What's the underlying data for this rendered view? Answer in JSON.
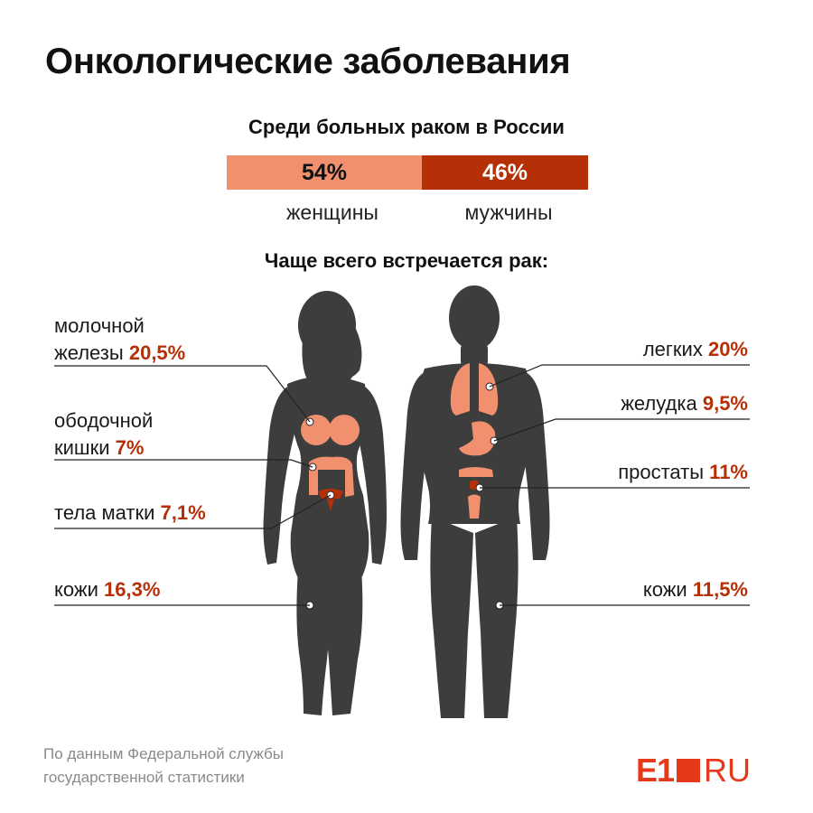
{
  "title": "Онкологические заболевания",
  "subtitle": "Среди больных раком в России",
  "gender_split": {
    "women": {
      "value": "54%",
      "label": "женщины",
      "share": 54,
      "color": "#f1906f"
    },
    "men": {
      "value": "46%",
      "label": "мужчины",
      "share": 46,
      "color": "#b52f07"
    }
  },
  "section_title": "Чаще всего встречается рак:",
  "women_cancers": [
    {
      "name_line1": "молочной",
      "name_line2": "железы",
      "value": "20,5%"
    },
    {
      "name_line1": "ободочной",
      "name_line2": "кишки",
      "value": "7%"
    },
    {
      "name_line1": "",
      "name_line2": "тела матки",
      "value": "7,1%"
    },
    {
      "name_line1": "",
      "name_line2": "кожи",
      "value": "16,3%"
    }
  ],
  "men_cancers": [
    {
      "name": "легких",
      "value": "20%"
    },
    {
      "name": "желудка",
      "value": "9,5%"
    },
    {
      "name": "простаты",
      "value": "11%"
    },
    {
      "name": "кожи",
      "value": "11,5%"
    }
  ],
  "source": {
    "line1": "По данным Федеральной службы",
    "line2": "государственной статистики"
  },
  "logo": {
    "left": "E1",
    "right": "RU"
  },
  "colors": {
    "body": "#3d3d3d",
    "organ": "#f1906f",
    "organ_dark": "#b52f07",
    "accent": "#b52f07",
    "line": "#222222"
  }
}
